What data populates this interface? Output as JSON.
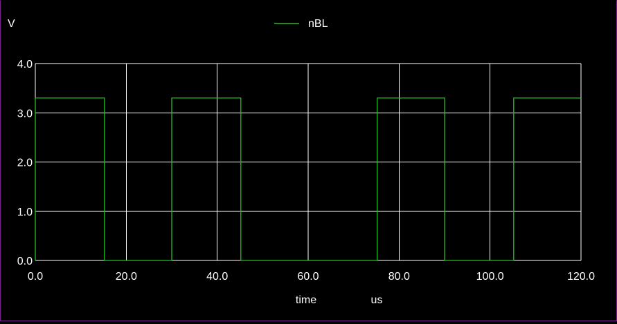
{
  "chart_data": {
    "type": "line",
    "ylabel": "V",
    "xlabel": "time",
    "xunit": "us",
    "xlim": [
      0,
      120
    ],
    "ylim": [
      0,
      4
    ],
    "xticks": [
      0,
      20,
      40,
      60,
      80,
      100,
      120
    ],
    "yticks": [
      0,
      1,
      2,
      3,
      4
    ],
    "xtick_labels": [
      "0.0",
      "20.0",
      "40.0",
      "60.0",
      "80.0",
      "100.0",
      "120.0"
    ],
    "ytick_labels": [
      "0.0",
      "1.0",
      "2.0",
      "3.0",
      "4.0"
    ],
    "grid": true,
    "legend_position": "top-center",
    "background_color": "#000000",
    "grid_color": "#ffffff",
    "series": [
      {
        "name": "nBL",
        "color": "#22c022",
        "x": [
          0,
          0,
          15.2,
          15.2,
          30,
          30,
          45.2,
          45.2,
          75.2,
          75.2,
          90,
          90,
          105.2,
          105.2,
          120
        ],
        "y": [
          0,
          3.3,
          3.3,
          0,
          0,
          3.3,
          3.3,
          0,
          0,
          3.3,
          3.3,
          0,
          0,
          3.3,
          3.3
        ]
      }
    ]
  }
}
